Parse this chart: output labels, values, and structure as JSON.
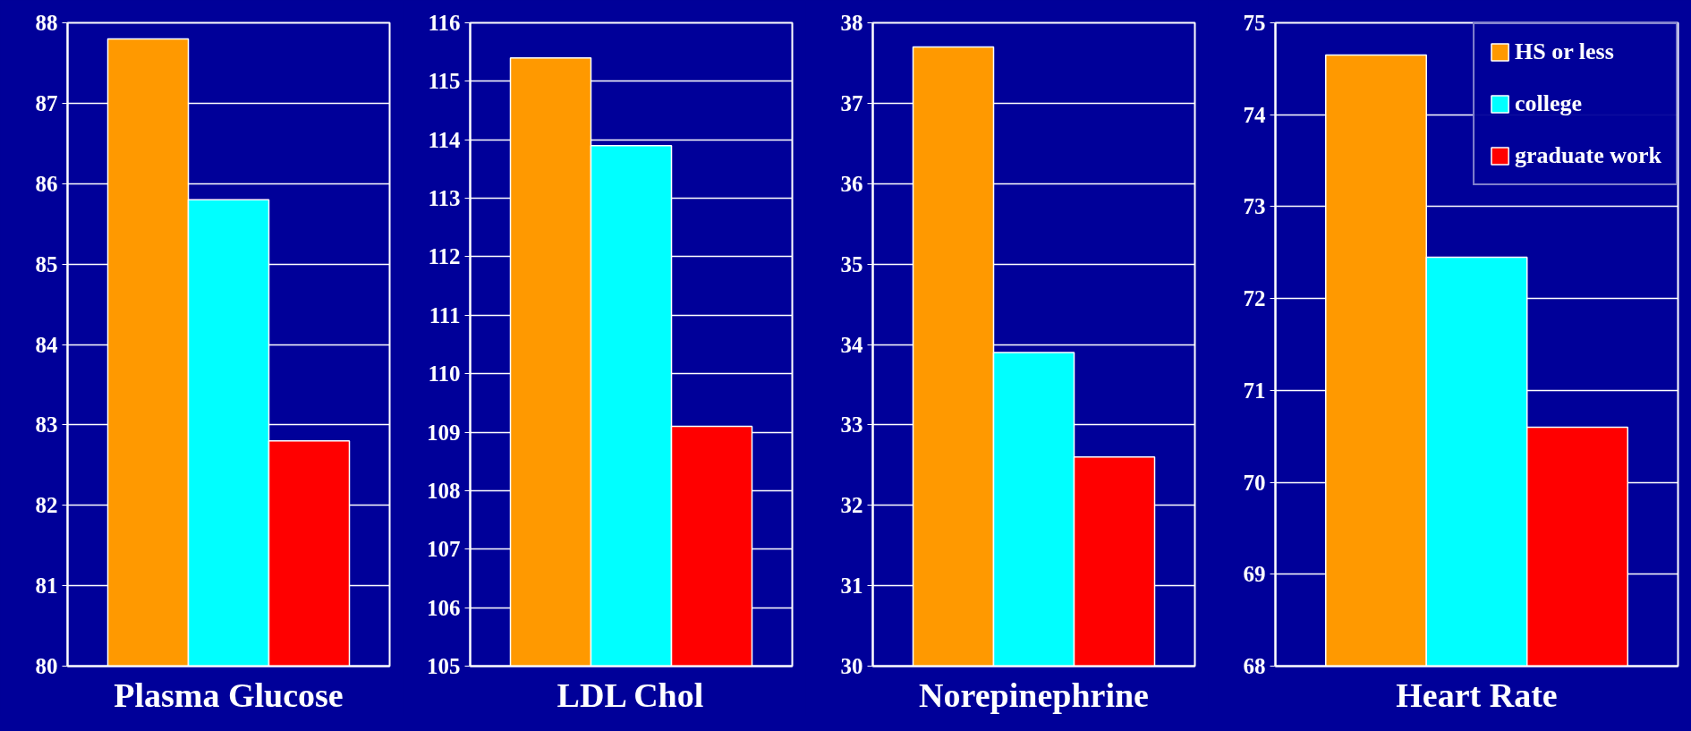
{
  "chart_data": [
    {
      "type": "bar",
      "xlabel": "Plasma Glucose",
      "categories": [
        null
      ],
      "ylim": [
        80,
        88
      ],
      "yticks": [
        80,
        81,
        82,
        83,
        84,
        85,
        86,
        87,
        88
      ],
      "grid": "y",
      "legend": false,
      "series": [
        {
          "color": "#ff9900",
          "values": [
            87.8
          ]
        },
        {
          "color": "#00ffff",
          "values": [
            85.8
          ]
        },
        {
          "color": "#ff0000",
          "values": [
            82.8
          ]
        }
      ]
    },
    {
      "type": "bar",
      "xlabel": "LDL Chol",
      "categories": [
        null
      ],
      "ylim": [
        105,
        116
      ],
      "yticks": [
        105,
        106,
        107,
        108,
        109,
        110,
        111,
        112,
        113,
        114,
        115,
        116
      ],
      "grid": "y",
      "legend": false,
      "series": [
        {
          "color": "#ff9900",
          "values": [
            115.4
          ]
        },
        {
          "color": "#00ffff",
          "values": [
            113.9
          ]
        },
        {
          "color": "#ff0000",
          "values": [
            109.1
          ]
        }
      ]
    },
    {
      "type": "bar",
      "xlabel": "Norepinephrine",
      "categories": [
        null
      ],
      "ylim": [
        30,
        38
      ],
      "yticks": [
        30,
        31,
        32,
        33,
        34,
        35,
        36,
        37,
        38
      ],
      "grid": "y",
      "legend": false,
      "series": [
        {
          "color": "#ff9900",
          "values": [
            37.7
          ]
        },
        {
          "color": "#00ffff",
          "values": [
            33.9
          ]
        },
        {
          "color": "#ff0000",
          "values": [
            32.6
          ]
        }
      ]
    },
    {
      "type": "bar",
      "xlabel": "Heart Rate",
      "categories": [
        null
      ],
      "ylim": [
        68,
        75
      ],
      "yticks": [
        68,
        69,
        70,
        71,
        72,
        73,
        74,
        75
      ],
      "grid": "y",
      "legend": "top right",
      "series": [
        {
          "name": "HS or less",
          "color": "#ff9900",
          "values": [
            74.65
          ]
        },
        {
          "name": "college",
          "color": "#00ffff",
          "values": [
            72.45
          ]
        },
        {
          "name": "graduate work",
          "color": "#ff0000",
          "values": [
            70.6
          ]
        }
      ]
    }
  ]
}
